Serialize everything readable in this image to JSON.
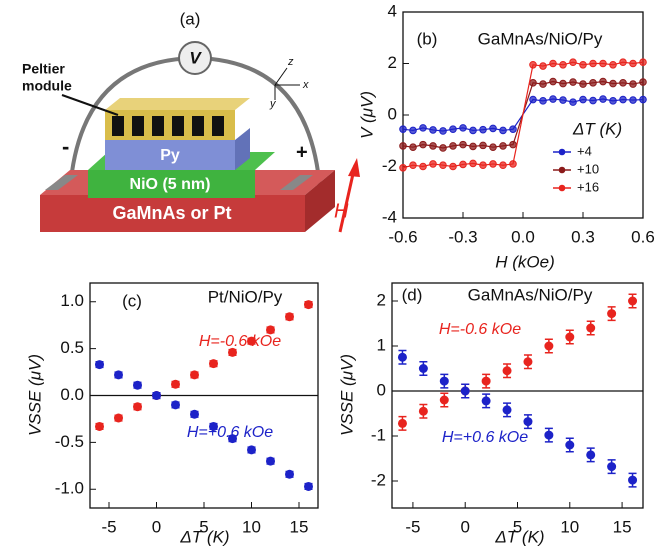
{
  "schematic": {
    "panel_label": "(a)",
    "peltier_label": [
      "Peltier",
      "module"
    ],
    "voltmeter": "V",
    "layer_top": "Py",
    "layer_middle": "NiO (5 nm)",
    "layer_bottom": "GaMnAs or Pt",
    "minus": "-",
    "plus": "+",
    "field": "H",
    "axis_z": "z",
    "axis_x": "x",
    "axis_y": "y"
  },
  "chart_data": [
    {
      "type": "line",
      "panel_label": "(b)",
      "title": "GaMnAs/NiO/Py",
      "x_label": "H (kOe)",
      "y_label": "V (μV)",
      "legend_title": "ΔT (K)",
      "x": [
        -0.6,
        -0.55,
        -0.5,
        -0.45,
        -0.4,
        -0.35,
        -0.3,
        -0.25,
        -0.2,
        -0.15,
        -0.1,
        -0.05,
        0.05,
        0.1,
        0.15,
        0.2,
        0.25,
        0.3,
        0.35,
        0.4,
        0.45,
        0.5,
        0.55,
        0.6
      ],
      "xlim": [
        -0.6,
        0.6
      ],
      "ylim": [
        -4,
        4
      ],
      "xticks": [
        -0.6,
        -0.3,
        {
          "value": 0,
          "label": "0.0"
        },
        0.3,
        0.6
      ],
      "yticks": [
        -4,
        -2,
        0,
        2,
        4
      ],
      "series": [
        {
          "name": "+4",
          "color": "#1c22c8",
          "values": [
            -0.55,
            -0.6,
            -0.5,
            -0.58,
            -0.62,
            -0.55,
            -0.5,
            -0.6,
            -0.57,
            -0.52,
            -0.6,
            -0.55,
            0.6,
            0.55,
            0.62,
            0.58,
            0.5,
            0.6,
            0.56,
            0.62,
            0.55,
            0.6,
            0.58,
            0.6
          ]
        },
        {
          "name": "+10",
          "color": "#8b1a1a",
          "values": [
            -1.2,
            -1.25,
            -1.15,
            -1.2,
            -1.28,
            -1.2,
            -1.15,
            -1.22,
            -1.18,
            -1.25,
            -1.2,
            -1.15,
            1.25,
            1.2,
            1.3,
            1.22,
            1.28,
            1.2,
            1.25,
            1.3,
            1.22,
            1.25,
            1.2,
            1.28
          ]
        },
        {
          "name": "+16",
          "color": "#e8241e",
          "values": [
            -2.05,
            -1.95,
            -2.0,
            -1.9,
            -1.95,
            -2.0,
            -1.92,
            -1.88,
            -1.95,
            -1.9,
            -1.95,
            -1.9,
            1.95,
            1.9,
            2.0,
            1.95,
            2.05,
            1.95,
            2.0,
            2.0,
            1.95,
            2.05,
            2.0,
            2.05
          ]
        }
      ]
    },
    {
      "type": "scatter",
      "panel_label": "(c)",
      "title": "Pt/NiO/Py",
      "x_label": "ΔT (K)",
      "y_label": "VSSE (μV)",
      "zero_line": true,
      "x": [
        -6,
        -4,
        -2,
        0,
        2,
        4,
        6,
        8,
        10,
        12,
        14,
        16
      ],
      "xlim": [
        -7,
        17
      ],
      "ylim": [
        -1.2,
        1.2
      ],
      "xticks": [
        -5,
        0,
        5,
        10,
        15
      ],
      "yticks": [
        {
          "value": -1,
          "label": "-1.0"
        },
        -0.5,
        {
          "value": 0,
          "label": "0.0"
        },
        0.5,
        {
          "value": 1,
          "label": "1.0"
        }
      ],
      "series": [
        {
          "name": "H=-0.6 kOe",
          "color": "#e8241e",
          "values": [
            -0.33,
            -0.24,
            -0.12,
            0,
            0.12,
            0.22,
            0.34,
            0.46,
            0.58,
            0.7,
            0.84,
            0.97
          ],
          "errors": [
            0.03,
            0.03,
            0.03,
            0.03,
            0.03,
            0.03,
            0.03,
            0.03,
            0.03,
            0.03,
            0.03,
            0.03
          ]
        },
        {
          "name": "H=+0.6 kOe",
          "color": "#1c22c8",
          "values": [
            0.33,
            0.22,
            0.11,
            0,
            -0.1,
            -0.2,
            -0.33,
            -0.46,
            -0.58,
            -0.7,
            -0.84,
            -0.97
          ],
          "errors": [
            0.03,
            0.03,
            0.03,
            0.03,
            0.03,
            0.03,
            0.03,
            0.03,
            0.03,
            0.03,
            0.03,
            0.03
          ]
        }
      ]
    },
    {
      "type": "scatter",
      "panel_label": "(d)",
      "title": "GaMnAs/NiO/Py",
      "x_label": "ΔT (K)",
      "y_label": "VSSE (μV)",
      "zero_line": true,
      "x": [
        -6,
        -4,
        -2,
        0,
        2,
        4,
        6,
        8,
        10,
        12,
        14,
        16
      ],
      "xlim": [
        -7,
        17
      ],
      "ylim": [
        -2.6,
        2.4
      ],
      "xticks": [
        -5,
        0,
        5,
        10,
        15
      ],
      "yticks": [
        -2,
        -1,
        0,
        1,
        2
      ],
      "series": [
        {
          "name": "H=-0.6 kOe",
          "color": "#e8241e",
          "values": [
            -0.72,
            -0.45,
            -0.2,
            0,
            0.22,
            0.45,
            0.65,
            1.0,
            1.2,
            1.4,
            1.72,
            2.0
          ],
          "errors": [
            0.15,
            0.15,
            0.15,
            0.15,
            0.15,
            0.15,
            0.15,
            0.15,
            0.15,
            0.15,
            0.15,
            0.15
          ]
        },
        {
          "name": "H=+0.6 kOe",
          "color": "#1c22c8",
          "values": [
            0.75,
            0.5,
            0.22,
            0,
            -0.22,
            -0.42,
            -0.68,
            -0.98,
            -1.2,
            -1.42,
            -1.68,
            -1.98
          ],
          "errors": [
            0.15,
            0.15,
            0.15,
            0.15,
            0.15,
            0.15,
            0.15,
            0.15,
            0.15,
            0.15,
            0.15,
            0.15
          ]
        }
      ]
    }
  ]
}
